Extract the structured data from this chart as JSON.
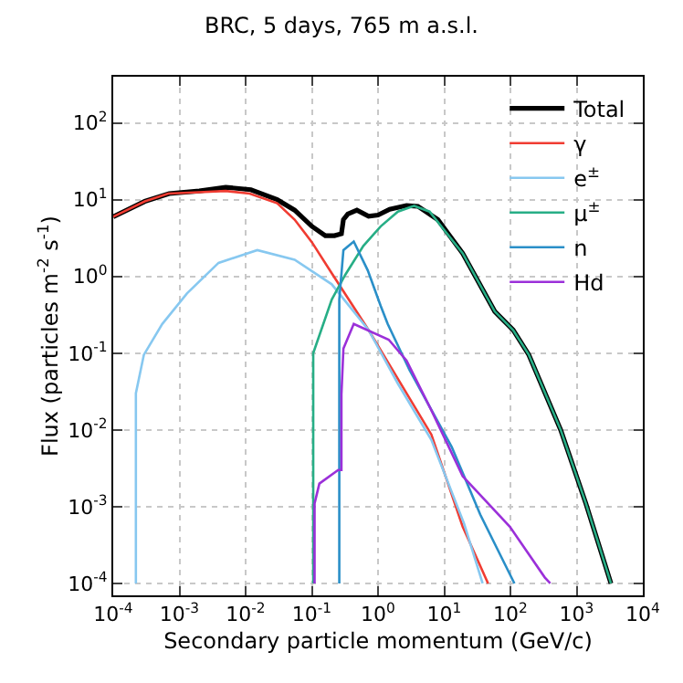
{
  "chart_data": {
    "type": "line",
    "title": "BRC, 5 days, 765 m a.s.l.",
    "xlabel": "Secondary particle momentum (GeV/c)",
    "ylabel": "Flux (particles m$^{-2}$ s$^{-1}$)",
    "log": "xy",
    "grid": true,
    "legend": "top right",
    "line_style": "solid",
    "marker": "none",
    "xlim": [
      0.0001,
      10000
    ],
    "ylim": [
      7e-05,
      400
    ],
    "xticks": [
      {
        "value": 0.0001,
        "label": "10$^{-4}$"
      },
      {
        "value": 0.001,
        "label": "10$^{-3}$"
      },
      {
        "value": 0.01,
        "label": "10$^{-2}$"
      },
      {
        "value": 0.1,
        "label": "10$^{-1}$"
      },
      {
        "value": 1,
        "label": "10$^{0}$"
      },
      {
        "value": 10,
        "label": "10$^{1}$"
      },
      {
        "value": 100,
        "label": "10$^{2}$"
      },
      {
        "value": 1000,
        "label": "10$^{3}$"
      },
      {
        "value": 10000,
        "label": "10$^{4}$"
      }
    ],
    "yticks": [
      {
        "value": 0.0001,
        "label": "10$^{-4}$"
      },
      {
        "value": 0.001,
        "label": "10$^{-3}$"
      },
      {
        "value": 0.01,
        "label": "10$^{-2}$"
      },
      {
        "value": 0.1,
        "label": "10$^{-1}$"
      },
      {
        "value": 1,
        "label": "10$^{0}$"
      },
      {
        "value": 10,
        "label": "10$^{1}$"
      },
      {
        "value": 100,
        "label": "10$^{2}$"
      }
    ],
    "series": [
      {
        "name": "Total",
        "color": "#000000",
        "x": [
          0.0001,
          0.0003,
          0.0007,
          0.002,
          0.005,
          0.012,
          0.03,
          0.055,
          0.1,
          0.16,
          0.22,
          0.28,
          0.3,
          0.35,
          0.48,
          0.72,
          1.0,
          1.5,
          2.7,
          4,
          8,
          19,
          58,
          110,
          190,
          575,
          1380,
          3300
        ],
        "values": [
          6,
          9.5,
          12,
          13,
          14.5,
          13.5,
          10,
          7.3,
          4.5,
          3.4,
          3.4,
          3.6,
          5.5,
          6.5,
          7.3,
          6.1,
          6.3,
          7.5,
          8.4,
          8.2,
          5.5,
          2,
          0.35,
          0.2,
          0.095,
          0.01,
          0.0011,
          0.0001
        ]
      },
      {
        "name": "γ",
        "color": "#f03c32",
        "x": [
          0.0001,
          0.0003,
          0.00068,
          0.002,
          0.005,
          0.0115,
          0.03,
          0.055,
          0.1,
          0.2,
          0.72,
          6.4,
          19,
          46
        ],
        "values": [
          6,
          9.5,
          12,
          12.5,
          13,
          12,
          9,
          5.5,
          2.8,
          1.1,
          0.2,
          0.0087,
          0.00055,
          0.0001
        ]
      },
      {
        "name": "e$^{±}$",
        "color": "#87c8f0",
        "x": [
          0.00022,
          0.00022,
          0.00029,
          0.00055,
          0.0013,
          0.0039,
          0.015,
          0.055,
          0.2,
          0.72,
          2,
          6.4,
          20,
          38
        ],
        "values": [
          0.0001,
          0.03,
          0.095,
          0.24,
          0.6,
          1.5,
          2.2,
          1.65,
          0.79,
          0.2,
          0.04,
          0.0074,
          0.0006,
          0.0001
        ]
      },
      {
        "name": "μ$^{±}$",
        "color": "#27ae86",
        "x": [
          0.105,
          0.105,
          0.2,
          0.32,
          0.6,
          1.1,
          2,
          3.5,
          6,
          19,
          58,
          110,
          190,
          575,
          1380,
          3300
        ],
        "values": [
          0.0001,
          0.1,
          0.5,
          1.05,
          2.5,
          4.5,
          7,
          8.3,
          7,
          2,
          0.35,
          0.2,
          0.095,
          0.01,
          0.0011,
          0.0001
        ]
      },
      {
        "name": "n",
        "color": "#2a8fc8",
        "x": [
          0.26,
          0.26,
          0.3,
          0.43,
          0.7,
          1.1,
          1.4,
          3,
          13,
          35,
          115
        ],
        "values": [
          0.0001,
          0.5,
          2.2,
          2.85,
          1.2,
          0.41,
          0.24,
          0.06,
          0.006,
          0.00079,
          0.0001
        ]
      },
      {
        "name": "Hd",
        "color": "#9b30d9",
        "x": [
          0.11,
          0.11,
          0.13,
          0.25,
          0.28,
          0.28,
          0.3,
          0.43,
          1.45,
          2.7,
          6.4,
          19,
          98,
          330,
          400
        ],
        "values": [
          0.0001,
          0.0011,
          0.002,
          0.003,
          0.003,
          0.029,
          0.115,
          0.24,
          0.15,
          0.08,
          0.018,
          0.0025,
          0.00055,
          0.00012,
          0.0001
        ]
      }
    ]
  }
}
